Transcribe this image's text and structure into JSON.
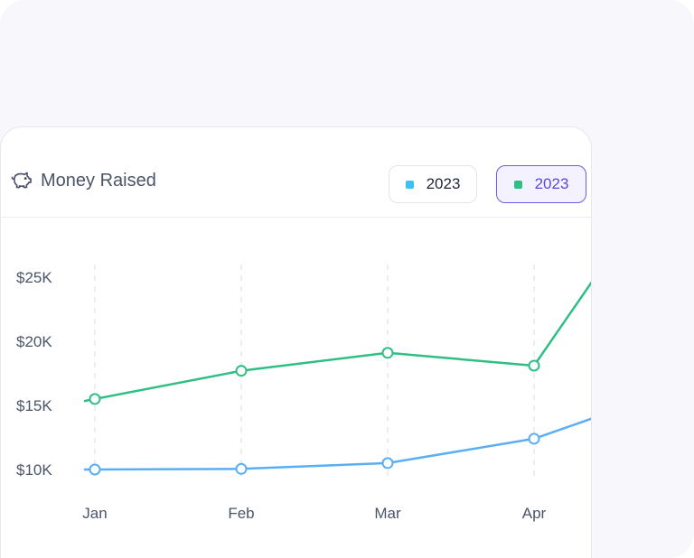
{
  "card": {
    "title": "Money Raised",
    "title_icon": "piggy-bank-icon"
  },
  "legend": [
    {
      "label": "2023",
      "color": "#38c3f4",
      "active": false
    },
    {
      "label": "2023",
      "color": "#2fbf84",
      "active": true
    }
  ],
  "chart_data": {
    "type": "line",
    "categories": [
      "Jan",
      "Feb",
      "Mar",
      "Apr"
    ],
    "y_ticks": [
      "$10K",
      "$15K",
      "$20K",
      "$25K"
    ],
    "ylim": [
      10000,
      25000
    ],
    "grid": "vertical-dashed",
    "series": [
      {
        "name": "2023",
        "color": "#2fbf84",
        "values": [
          15500,
          17700,
          19100,
          18100
        ]
      },
      {
        "name": "2023",
        "color": "#5aaef3",
        "values": [
          10000,
          10050,
          10500,
          12400
        ]
      }
    ]
  }
}
